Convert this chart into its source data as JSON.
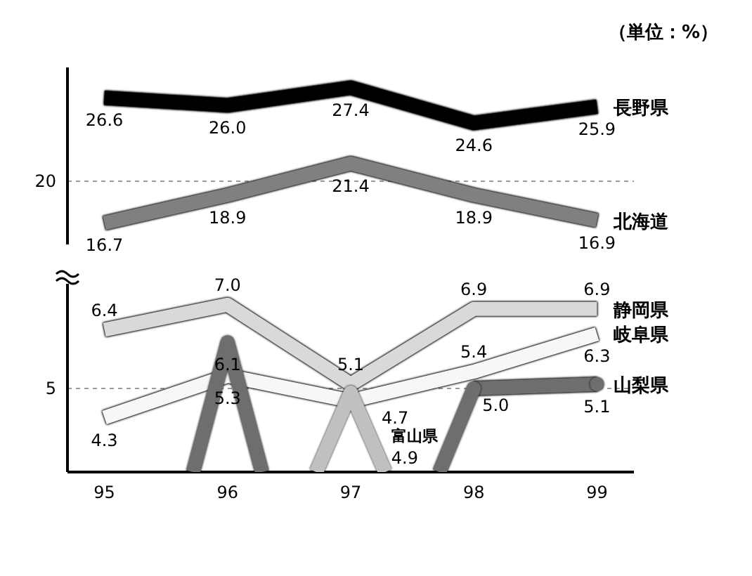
{
  "chart_data": [
    {
      "type": "line",
      "annotations": [
        "（単位：%）"
      ],
      "categories": [
        "95",
        "96",
        "97",
        "98",
        "99"
      ],
      "series": [
        {
          "name": "長野県",
          "color": "#000000",
          "values": [
            26.6,
            26.0,
            27.4,
            24.6,
            25.9
          ],
          "value_labels": [
            "26.6",
            "26.0",
            "27.4",
            "24.6",
            "25.9"
          ]
        },
        {
          "name": "北海道",
          "color": "#808080",
          "values": [
            16.7,
            18.9,
            21.4,
            18.9,
            16.9
          ],
          "value_labels": [
            "16.7",
            "18.9",
            "21.4",
            "18.9",
            "16.9"
          ]
        }
      ],
      "ylim": [
        15,
        29
      ],
      "ref_lines": [
        {
          "axis": "y",
          "value": 20,
          "label": "20"
        }
      ],
      "tick_labels": "y"
    },
    {
      "type": "line",
      "categories": [
        "95",
        "96",
        "97",
        "98",
        "99"
      ],
      "series": [
        {
          "name": "静岡県",
          "color": "#d9d9d9",
          "values": [
            6.4,
            7.0,
            5.1,
            6.9,
            6.9
          ],
          "value_labels": [
            "6.4",
            "7.0",
            "5.1",
            "6.9",
            "6.9"
          ]
        },
        {
          "name": "岐阜県",
          "color": "#f7f7f7",
          "values": [
            4.3,
            5.3,
            4.7,
            5.4,
            6.3
          ],
          "value_labels": [
            "4.3",
            "5.3",
            "4.7",
            "5.4",
            "6.3"
          ]
        },
        {
          "name": "山梨県",
          "color": "#6e6e6e",
          "marker": "circle",
          "values": [
            null,
            6.1,
            null,
            5.0,
            5.1
          ],
          "value_labels": [
            null,
            "6.1",
            null,
            "5.0",
            "5.1"
          ]
        },
        {
          "name": "富山県",
          "color": "#c0c0c0",
          "marker": "circle",
          "values": [
            null,
            null,
            4.9,
            null,
            null
          ],
          "value_labels": [
            null,
            null,
            "4.9",
            null,
            null
          ]
        }
      ],
      "ylim": [
        3,
        7.5
      ],
      "ref_lines": [
        {
          "axis": "y",
          "value": 5,
          "label": "5"
        }
      ]
    }
  ]
}
